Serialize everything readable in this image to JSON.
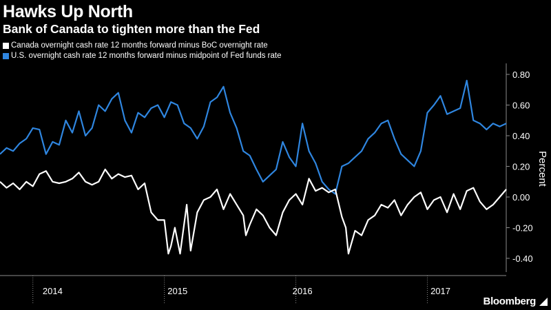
{
  "title": "Hawks Up North",
  "subtitle": "Bank of Canada to tighten more than the Fed",
  "brand": "Bloomberg",
  "colors": {
    "background": "#000000",
    "canada": "#ffffff",
    "us": "#2f86e0",
    "axis": "#8c8c8c"
  },
  "chart_data": {
    "type": "line",
    "ylabel": "Percent",
    "ylim": [
      -0.5,
      0.9
    ],
    "yticks": [
      0.8,
      0.6,
      0.4,
      0.2,
      0.0,
      -0.2,
      -0.4
    ],
    "ytick_labels": [
      "0.80",
      "0.60",
      "0.40",
      "0.20",
      "0.00",
      "-0.20",
      "-0.40"
    ],
    "xlim": [
      2013.75,
      2017.6
    ],
    "year_boundaries": [
      2014.0,
      2015.0,
      2016.0,
      2017.0
    ],
    "year_labels": [
      {
        "label": "2014",
        "x": 2014.15
      },
      {
        "label": "2015",
        "x": 2015.1
      },
      {
        "label": "2016",
        "x": 2016.05
      },
      {
        "label": "2017",
        "x": 2017.1
      }
    ],
    "legend_position": "top-left",
    "grid": false,
    "series": [
      {
        "name": "Canada overnight cash rate 12 months forward minus BoC overnight rate",
        "color": "#ffffff",
        "points": [
          [
            2013.75,
            0.1
          ],
          [
            2013.8,
            0.06
          ],
          [
            2013.85,
            0.09
          ],
          [
            2013.9,
            0.05
          ],
          [
            2013.95,
            0.1
          ],
          [
            2014.0,
            0.07
          ],
          [
            2014.05,
            0.15
          ],
          [
            2014.1,
            0.17
          ],
          [
            2014.15,
            0.1
          ],
          [
            2014.2,
            0.09
          ],
          [
            2014.25,
            0.1
          ],
          [
            2014.3,
            0.12
          ],
          [
            2014.35,
            0.16
          ],
          [
            2014.4,
            0.1
          ],
          [
            2014.45,
            0.08
          ],
          [
            2014.5,
            0.1
          ],
          [
            2014.55,
            0.18
          ],
          [
            2014.6,
            0.12
          ],
          [
            2014.65,
            0.15
          ],
          [
            2014.7,
            0.13
          ],
          [
            2014.75,
            0.14
          ],
          [
            2014.8,
            0.05
          ],
          [
            2014.85,
            0.09
          ],
          [
            2014.9,
            -0.1
          ],
          [
            2014.95,
            -0.15
          ],
          [
            2015.0,
            -0.15
          ],
          [
            2015.03,
            -0.37
          ],
          [
            2015.05,
            -0.32
          ],
          [
            2015.08,
            -0.2
          ],
          [
            2015.12,
            -0.37
          ],
          [
            2015.17,
            -0.05
          ],
          [
            2015.2,
            -0.35
          ],
          [
            2015.25,
            -0.1
          ],
          [
            2015.3,
            -0.02
          ],
          [
            2015.35,
            0.0
          ],
          [
            2015.4,
            0.05
          ],
          [
            2015.45,
            -0.08
          ],
          [
            2015.5,
            0.02
          ],
          [
            2015.55,
            -0.05
          ],
          [
            2015.6,
            -0.12
          ],
          [
            2015.62,
            -0.25
          ],
          [
            2015.65,
            -0.18
          ],
          [
            2015.7,
            -0.08
          ],
          [
            2015.75,
            -0.12
          ],
          [
            2015.8,
            -0.2
          ],
          [
            2015.85,
            -0.25
          ],
          [
            2015.9,
            -0.1
          ],
          [
            2015.95,
            -0.02
          ],
          [
            2016.0,
            0.02
          ],
          [
            2016.05,
            -0.05
          ],
          [
            2016.1,
            0.12
          ],
          [
            2016.15,
            0.04
          ],
          [
            2016.2,
            0.06
          ],
          [
            2016.25,
            0.03
          ],
          [
            2016.3,
            0.05
          ],
          [
            2016.35,
            -0.13
          ],
          [
            2016.38,
            -0.2
          ],
          [
            2016.4,
            -0.37
          ],
          [
            2016.45,
            -0.22
          ],
          [
            2016.5,
            -0.25
          ],
          [
            2016.55,
            -0.15
          ],
          [
            2016.6,
            -0.12
          ],
          [
            2016.65,
            -0.05
          ],
          [
            2016.7,
            -0.07
          ],
          [
            2016.75,
            -0.02
          ],
          [
            2016.8,
            -0.12
          ],
          [
            2016.85,
            -0.05
          ],
          [
            2016.9,
            0.0
          ],
          [
            2016.95,
            0.03
          ],
          [
            2017.0,
            -0.08
          ],
          [
            2017.05,
            -0.02
          ],
          [
            2017.1,
            0.0
          ],
          [
            2017.15,
            -0.1
          ],
          [
            2017.2,
            0.02
          ],
          [
            2017.25,
            -0.08
          ],
          [
            2017.3,
            0.04
          ],
          [
            2017.35,
            0.06
          ],
          [
            2017.4,
            -0.03
          ],
          [
            2017.45,
            -0.08
          ],
          [
            2017.5,
            -0.05
          ],
          [
            2017.55,
            0.0
          ],
          [
            2017.6,
            0.05
          ]
        ]
      },
      {
        "name": "U.S. overnight cash rate 12 months forward minus midpoint of Fed funds rate",
        "color": "#2f86e0",
        "points": [
          [
            2013.75,
            0.28
          ],
          [
            2013.8,
            0.32
          ],
          [
            2013.85,
            0.3
          ],
          [
            2013.9,
            0.35
          ],
          [
            2013.95,
            0.38
          ],
          [
            2014.0,
            0.45
          ],
          [
            2014.05,
            0.44
          ],
          [
            2014.1,
            0.28
          ],
          [
            2014.15,
            0.36
          ],
          [
            2014.2,
            0.34
          ],
          [
            2014.25,
            0.5
          ],
          [
            2014.3,
            0.42
          ],
          [
            2014.35,
            0.56
          ],
          [
            2014.4,
            0.4
          ],
          [
            2014.45,
            0.45
          ],
          [
            2014.5,
            0.6
          ],
          [
            2014.55,
            0.56
          ],
          [
            2014.6,
            0.64
          ],
          [
            2014.65,
            0.68
          ],
          [
            2014.7,
            0.5
          ],
          [
            2014.75,
            0.42
          ],
          [
            2014.8,
            0.55
          ],
          [
            2014.85,
            0.52
          ],
          [
            2014.9,
            0.58
          ],
          [
            2014.95,
            0.6
          ],
          [
            2015.0,
            0.52
          ],
          [
            2015.05,
            0.62
          ],
          [
            2015.1,
            0.6
          ],
          [
            2015.15,
            0.48
          ],
          [
            2015.2,
            0.45
          ],
          [
            2015.25,
            0.38
          ],
          [
            2015.3,
            0.46
          ],
          [
            2015.35,
            0.62
          ],
          [
            2015.4,
            0.65
          ],
          [
            2015.45,
            0.72
          ],
          [
            2015.5,
            0.55
          ],
          [
            2015.55,
            0.45
          ],
          [
            2015.6,
            0.3
          ],
          [
            2015.65,
            0.27
          ],
          [
            2015.7,
            0.18
          ],
          [
            2015.75,
            0.1
          ],
          [
            2015.8,
            0.14
          ],
          [
            2015.85,
            0.18
          ],
          [
            2015.9,
            0.36
          ],
          [
            2015.95,
            0.26
          ],
          [
            2016.0,
            0.2
          ],
          [
            2016.05,
            0.48
          ],
          [
            2016.1,
            0.3
          ],
          [
            2016.15,
            0.22
          ],
          [
            2016.2,
            0.1
          ],
          [
            2016.25,
            0.05
          ],
          [
            2016.3,
            0.02
          ],
          [
            2016.35,
            0.2
          ],
          [
            2016.4,
            0.22
          ],
          [
            2016.45,
            0.26
          ],
          [
            2016.5,
            0.3
          ],
          [
            2016.55,
            0.38
          ],
          [
            2016.6,
            0.42
          ],
          [
            2016.65,
            0.48
          ],
          [
            2016.7,
            0.5
          ],
          [
            2016.75,
            0.38
          ],
          [
            2016.8,
            0.28
          ],
          [
            2016.85,
            0.24
          ],
          [
            2016.9,
            0.2
          ],
          [
            2016.95,
            0.3
          ],
          [
            2017.0,
            0.55
          ],
          [
            2017.05,
            0.6
          ],
          [
            2017.1,
            0.66
          ],
          [
            2017.15,
            0.54
          ],
          [
            2017.2,
            0.56
          ],
          [
            2017.25,
            0.58
          ],
          [
            2017.3,
            0.76
          ],
          [
            2017.35,
            0.5
          ],
          [
            2017.4,
            0.48
          ],
          [
            2017.45,
            0.44
          ],
          [
            2017.5,
            0.48
          ],
          [
            2017.55,
            0.46
          ],
          [
            2017.6,
            0.48
          ]
        ]
      }
    ]
  }
}
